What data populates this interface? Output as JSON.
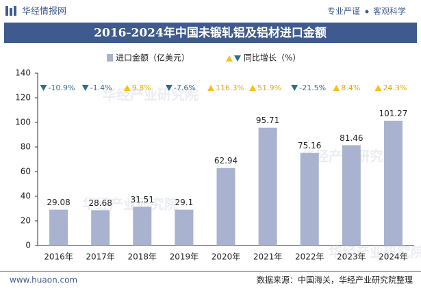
{
  "header": {
    "brand": "华经情报网",
    "slogan_left": "专业严谨",
    "slogan_right": "客观科学"
  },
  "chart_data": {
    "type": "bar",
    "title": "2016-2024年中国未锻轧铝及铝材进口金额",
    "categories": [
      "2016年",
      "2017年",
      "2018年",
      "2019年",
      "2020年",
      "2021年",
      "2022年",
      "2023年",
      "2024年"
    ],
    "series": [
      {
        "name": "进口金额（亿美元）",
        "color": "#a9b3cf",
        "values": [
          29.08,
          28.68,
          31.51,
          29.1,
          62.94,
          95.71,
          75.16,
          81.46,
          101.27
        ]
      }
    ],
    "growth": {
      "name": "同比增长（%）",
      "up_color": "#f6c21a",
      "down_color": "#2f6d8c",
      "values": [
        -10.9,
        -1.4,
        9.8,
        -7.6,
        116.3,
        51.9,
        -21.5,
        8.4,
        24.3
      ],
      "value_labels": [
        "-10.9%",
        "-1.4%",
        "9.8%",
        "-7.6%",
        "116.3%",
        "51.9%",
        "-21.5%",
        "8.4%",
        "24.3%"
      ]
    },
    "ylim": [
      0,
      140
    ],
    "yticks": [
      0,
      20,
      40,
      60,
      80,
      100,
      120,
      140
    ],
    "grid": false,
    "watermark": "华经产业研究院"
  },
  "footer": {
    "website": "www.huaon.com",
    "source": "数据来源：中国海关，华经产业研究院整理"
  }
}
